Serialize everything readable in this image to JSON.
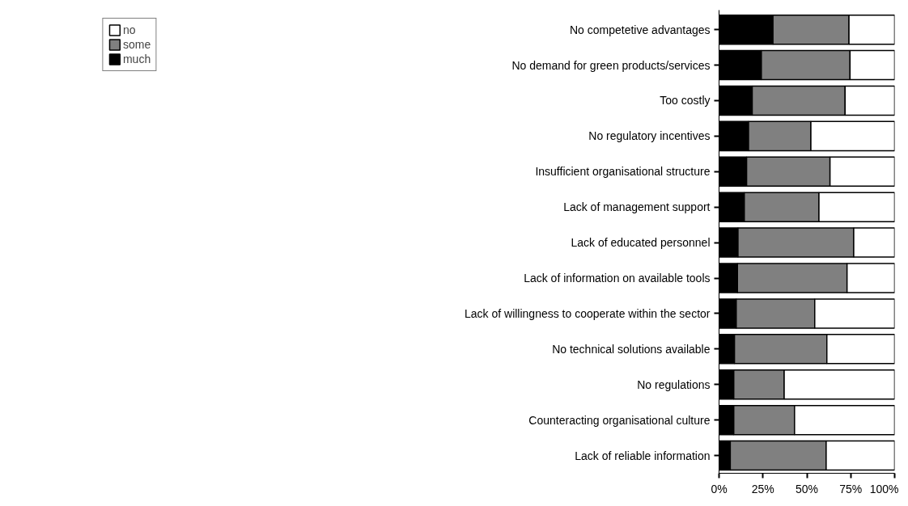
{
  "chart_data": {
    "type": "bar",
    "orientation": "horizontal",
    "stacked": true,
    "categories": [
      "No competetive advantages",
      "No demand for green products/services",
      "Too costly",
      "No regulatory incentives",
      "Insufficient organisational structure",
      "Lack of management support",
      "Lack of educated personnel",
      "Lack of information on available tools",
      "Lack of willingness to cooperate within the sector",
      "No technical solutions available",
      "No regulations",
      "Counteracting organisational culture",
      "Lack of reliable information"
    ],
    "series": [
      {
        "name": "much",
        "color": "#000000",
        "values": [
          30.7,
          24.1,
          18.9,
          16.8,
          15.7,
          14.4,
          10.8,
          10.5,
          9.8,
          8.8,
          8.4,
          8.4,
          6.4
        ]
      },
      {
        "name": "some",
        "color": "#808080",
        "values": [
          43.3,
          50.5,
          52.9,
          35.5,
          47.5,
          42.5,
          65.9,
          62.4,
          44.7,
          52.6,
          28.7,
          34.6,
          54.6
        ]
      },
      {
        "name": "no",
        "color": "#ffffff",
        "values": [
          26.0,
          25.4,
          28.2,
          47.7,
          36.8,
          43.1,
          23.3,
          27.1,
          45.5,
          38.6,
          62.9,
          57.0,
          39.0
        ]
      }
    ],
    "xlim": [
      0,
      100
    ],
    "xticks": [
      {
        "value": 0,
        "label": "0%"
      },
      {
        "value": 25,
        "label": "25%"
      },
      {
        "value": 50,
        "label": "50%"
      },
      {
        "value": 75,
        "label": "75%"
      },
      {
        "value": 100,
        "label": "100%"
      }
    ],
    "legend": "left",
    "grid": false
  }
}
